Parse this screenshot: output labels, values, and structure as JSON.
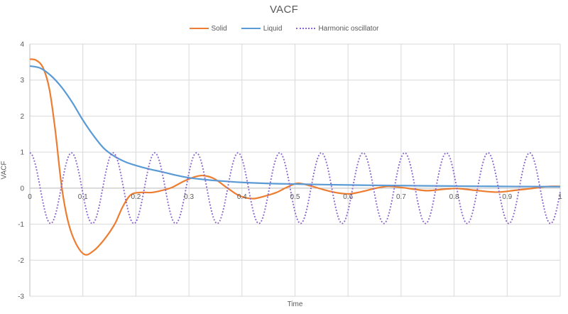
{
  "title": "VACF",
  "legend": {
    "position": "top",
    "items": [
      {
        "label": "Solid",
        "color": "#ED7D31",
        "line_style": "solid"
      },
      {
        "label": "Liquid",
        "color": "#5B9BD5",
        "line_style": "solid"
      },
      {
        "label": "Harmonic oscillator",
        "color": "#8B66CB",
        "line_style": "dotted"
      }
    ]
  },
  "axes": {
    "x": {
      "title": "Time",
      "ticks": [
        "0",
        "0.1",
        "0.2",
        "0.3",
        "0.4",
        "0.5",
        "0.6",
        "0.7",
        "0.8",
        "0.9",
        "1"
      ],
      "range": [
        0,
        1
      ]
    },
    "y": {
      "title": "VACF",
      "ticks": [
        "4",
        "3",
        "2",
        "1",
        "0",
        "-1",
        "-2",
        "-3"
      ],
      "range": [
        -3,
        4
      ]
    }
  },
  "colors": {
    "background": "#FFFFFF",
    "gridline": "#D9D9D9",
    "axis_line": "#BFBFBF",
    "text": "#595959"
  },
  "chart_data": {
    "type": "line",
    "title": "VACF",
    "xlabel": "Time",
    "ylabel": "VACF",
    "xlim": [
      0,
      1
    ],
    "ylim": [
      -3,
      4
    ],
    "x_tick_step": 0.1,
    "y_tick_step": 1,
    "grid": true,
    "legend_position": "top-center",
    "series": [
      {
        "name": "Solid",
        "color": "#ED7D31",
        "line_style": "solid",
        "stroke_width": 2.2,
        "points": [
          [
            0,
            3.58
          ],
          [
            0.012,
            3.55
          ],
          [
            0.025,
            3.34
          ],
          [
            0.037,
            2.74
          ],
          [
            0.048,
            1.6
          ],
          [
            0.06,
            0.05
          ],
          [
            0.072,
            -0.92
          ],
          [
            0.086,
            -1.51
          ],
          [
            0.103,
            -1.84
          ],
          [
            0.12,
            -1.74
          ],
          [
            0.14,
            -1.43
          ],
          [
            0.16,
            -1.0
          ],
          [
            0.175,
            -0.52
          ],
          [
            0.19,
            -0.19
          ],
          [
            0.208,
            -0.12
          ],
          [
            0.23,
            -0.12
          ],
          [
            0.25,
            -0.06
          ],
          [
            0.268,
            0.02
          ],
          [
            0.29,
            0.19
          ],
          [
            0.31,
            0.31
          ],
          [
            0.327,
            0.35
          ],
          [
            0.348,
            0.26
          ],
          [
            0.372,
            0.01
          ],
          [
            0.395,
            -0.21
          ],
          [
            0.42,
            -0.29
          ],
          [
            0.443,
            -0.22
          ],
          [
            0.465,
            -0.12
          ],
          [
            0.484,
            0.02
          ],
          [
            0.505,
            0.135
          ],
          [
            0.53,
            0.06
          ],
          [
            0.556,
            -0.05
          ],
          [
            0.58,
            -0.13
          ],
          [
            0.602,
            -0.16
          ],
          [
            0.625,
            -0.1
          ],
          [
            0.65,
            -0.01
          ],
          [
            0.675,
            0.05
          ],
          [
            0.7,
            0.02
          ],
          [
            0.725,
            -0.03
          ],
          [
            0.75,
            -0.07
          ],
          [
            0.78,
            -0.03
          ],
          [
            0.806,
            -0.01
          ],
          [
            0.84,
            -0.06
          ],
          [
            0.88,
            -0.11
          ],
          [
            0.915,
            -0.06
          ],
          [
            0.945,
            -0.01
          ],
          [
            0.975,
            0.045
          ],
          [
            1,
            0.05
          ]
        ]
      },
      {
        "name": "Liquid",
        "color": "#5B9BD5",
        "line_style": "solid",
        "stroke_width": 2.2,
        "points": [
          [
            0,
            3.39
          ],
          [
            0.02,
            3.33
          ],
          [
            0.04,
            3.12
          ],
          [
            0.06,
            2.8
          ],
          [
            0.08,
            2.38
          ],
          [
            0.1,
            1.89
          ],
          [
            0.12,
            1.46
          ],
          [
            0.14,
            1.1
          ],
          [
            0.16,
            0.88
          ],
          [
            0.18,
            0.73
          ],
          [
            0.2,
            0.63
          ],
          [
            0.225,
            0.53
          ],
          [
            0.25,
            0.45
          ],
          [
            0.275,
            0.36
          ],
          [
            0.3,
            0.29
          ],
          [
            0.325,
            0.245
          ],
          [
            0.35,
            0.21
          ],
          [
            0.4,
            0.16
          ],
          [
            0.45,
            0.13
          ],
          [
            0.5,
            0.115
          ],
          [
            0.55,
            0.1
          ],
          [
            0.6,
            0.088
          ],
          [
            0.65,
            0.079
          ],
          [
            0.7,
            0.071
          ],
          [
            0.75,
            0.064
          ],
          [
            0.8,
            0.058
          ],
          [
            0.85,
            0.053
          ],
          [
            0.9,
            0.048
          ],
          [
            0.95,
            0.044
          ],
          [
            1,
            0.04
          ]
        ]
      },
      {
        "name": "Harmonic oscillator",
        "color": "#8B66CB",
        "line_style": "dotted",
        "stroke_width": 1.9,
        "model": {
          "type": "cosine",
          "formula": "v = A * cos(omega * t)",
          "amplitude": 0.98,
          "omega_rad_per_time_unit": 80,
          "period": 0.0785,
          "t_range": [
            0,
            1
          ],
          "sample_step": 0.002
        }
      }
    ]
  }
}
